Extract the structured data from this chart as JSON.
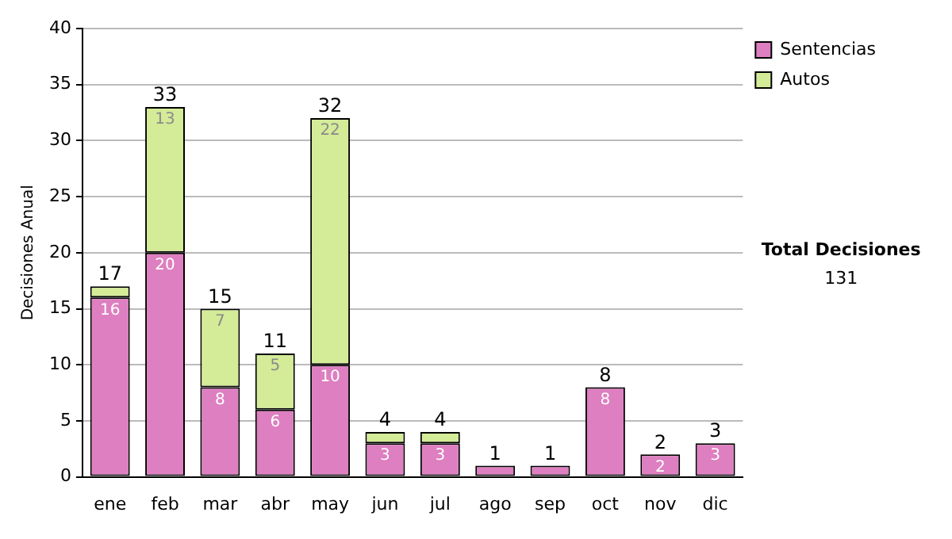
{
  "chart_data": {
    "type": "bar",
    "stacked": true,
    "ylabel": "Decisiones Anual",
    "categories": [
      "ene",
      "feb",
      "mar",
      "abr",
      "may",
      "jun",
      "jul",
      "ago",
      "sep",
      "oct",
      "nov",
      "dic"
    ],
    "series": [
      {
        "name": "Sentencias",
        "color": "#dd7fc0",
        "values": [
          16,
          20,
          8,
          6,
          10,
          3,
          3,
          1,
          1,
          8,
          2,
          3
        ],
        "value_labels": [
          "16",
          "20",
          "8",
          "6",
          "10",
          "3",
          "3",
          null,
          null,
          "8",
          "2",
          "3"
        ]
      },
      {
        "name": "Autos",
        "color": "#d4eb98",
        "values": [
          1,
          13,
          7,
          5,
          22,
          1,
          1,
          0,
          0,
          0,
          0,
          0
        ],
        "value_labels": [
          null,
          "13",
          "7",
          "5",
          "22",
          null,
          null,
          null,
          null,
          null,
          null,
          null
        ]
      }
    ],
    "totals": [
      "17",
      "33",
      "15",
      "11",
      "32",
      "4",
      "4",
      "1",
      "1",
      "8",
      "2",
      "3"
    ],
    "ylim": [
      0,
      40
    ],
    "yticks": [
      0,
      5,
      10,
      15,
      20,
      25,
      30,
      35,
      40
    ],
    "grid": "y",
    "legend": "right",
    "annotations": [
      "Total Decisiones",
      "131"
    ]
  }
}
